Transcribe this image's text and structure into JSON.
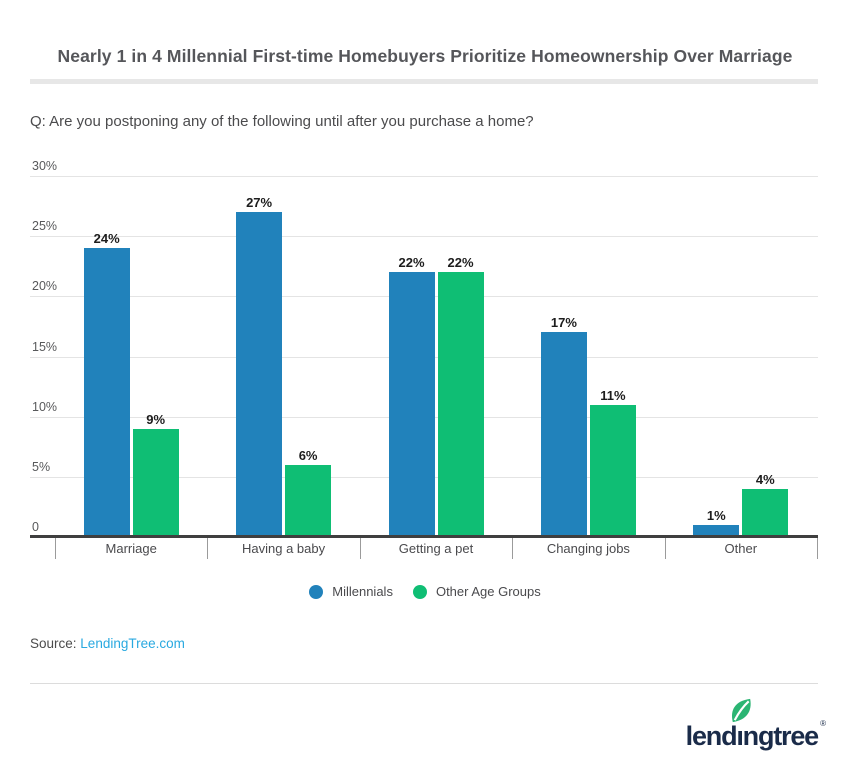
{
  "header": {
    "title": "Nearly 1 in 4 Millennial First-time Homebuyers Prioritize Homeownership Over Marriage",
    "question": "Q: Are you postponing any of the following until after you purchase a home?"
  },
  "chart_data": {
    "type": "bar",
    "title": "Nearly 1 in 4 Millennial First-time Homebuyers Prioritize Homeownership Over Marriage",
    "subtitle": "Q: Are you postponing any of the following until after you purchase a home?",
    "categories": [
      "Marriage",
      "Having a baby",
      "Getting a pet",
      "Changing jobs",
      "Other"
    ],
    "series": [
      {
        "name": "Millennials",
        "color": "#2182BB",
        "values": [
          24,
          27,
          22,
          17,
          1
        ]
      },
      {
        "name": "Other Age Groups",
        "color": "#0FBE74",
        "values": [
          9,
          6,
          22,
          11,
          4
        ]
      }
    ],
    "value_label_suffix": "%",
    "y_axis": {
      "max": 30,
      "ticks": [
        {
          "value": 30,
          "label": "30%"
        },
        {
          "value": 25,
          "label": "25%"
        },
        {
          "value": 20,
          "label": "20%"
        },
        {
          "value": 15,
          "label": "15%"
        },
        {
          "value": 10,
          "label": "10%"
        },
        {
          "value": 5,
          "label": "5%"
        },
        {
          "value": 0,
          "label": "0"
        }
      ]
    },
    "grid": true,
    "legend_position": "bottom",
    "colors": {
      "grid": "#E4E4E4",
      "axis": "#3F3F3F",
      "tick": "#9B9B9B",
      "value_label": "#1D1D1D",
      "axis_label": "#58595B",
      "category_label": "#4A4A4D"
    }
  },
  "source": {
    "prefix": "Source:",
    "link_text": "LendingTree.com",
    "link_color": "#29A9E0"
  },
  "footer": {
    "logo_text": "lendingtree",
    "registered_mark": "®",
    "logo_color": "#1A2B49",
    "leaf_color": "#2BB573"
  }
}
